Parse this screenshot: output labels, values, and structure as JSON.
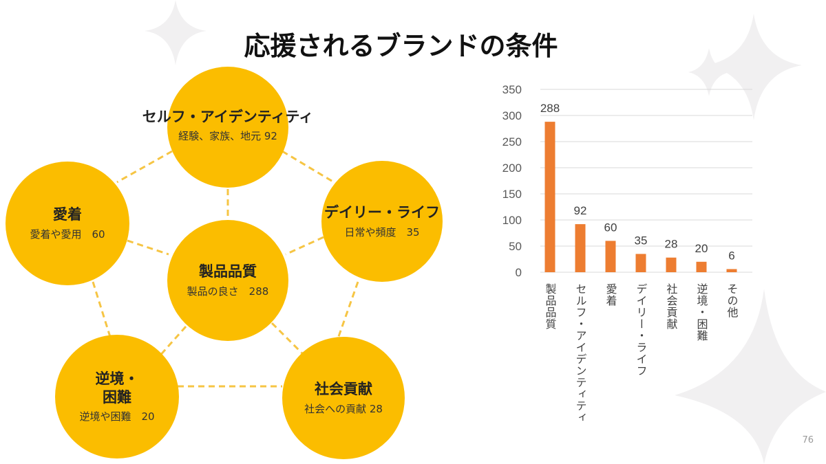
{
  "title": "応援されるブランドの条件",
  "page_number": "76",
  "colors": {
    "circle": "#fbbd00",
    "bar": "#ed7d31",
    "connector": "#f6c544"
  },
  "diagram": {
    "center": {
      "heading": "製品品質",
      "sub": "製品の良さ　288"
    },
    "top": {
      "heading": "セルフ・アイデンティティ",
      "sub": "経験、家族、地元 92"
    },
    "left": {
      "heading": "愛着",
      "sub": "愛着や愛用　60"
    },
    "right": {
      "heading": "デイリー・ライフ",
      "sub": "日常や頻度　35"
    },
    "bottom_left": {
      "heading": "逆境・\n困難",
      "sub": "逆境や困難　20"
    },
    "bottom_right": {
      "heading": "社会貢献",
      "sub": "社会への貢献  28"
    }
  },
  "chart_data": {
    "type": "bar",
    "categories": [
      "製品品質",
      "セルフ・アイデンティティ",
      "愛着",
      "デイリー・ライフ",
      "社会貢献",
      "逆境・困難",
      "その他"
    ],
    "values": [
      288,
      92,
      60,
      35,
      28,
      20,
      6
    ],
    "ylim": [
      0,
      350
    ],
    "yticks": [
      0,
      50,
      100,
      150,
      200,
      250,
      300,
      350
    ],
    "grid": true,
    "title": "",
    "xlabel": "",
    "ylabel": ""
  }
}
